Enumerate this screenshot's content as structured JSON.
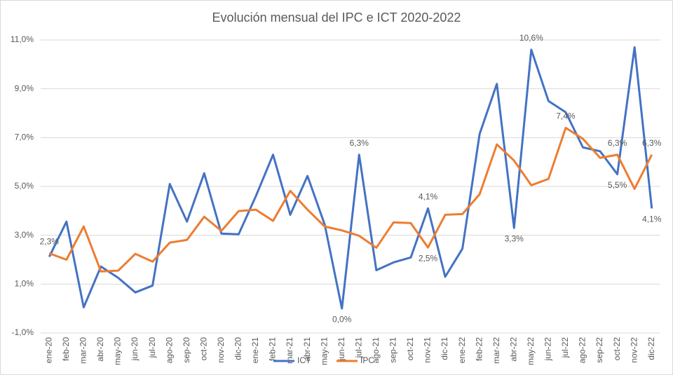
{
  "chart_data": {
    "type": "line",
    "title": "Evolución mensual del IPC e ICT 2020-2022",
    "categories": [
      "ene-20",
      "feb-20",
      "mar-20",
      "abr-20",
      "may-20",
      "jun-20",
      "jul-20",
      "ago-20",
      "sep-20",
      "oct-20",
      "nov-20",
      "dic-20",
      "ene-21",
      "feb-21",
      "mar-21",
      "abr-21",
      "may-21",
      "jun-21",
      "jul-21",
      "ago-21",
      "sep-21",
      "oct-21",
      "nov-21",
      "dic-21",
      "ene-22",
      "feb-22",
      "mar-22",
      "abr-22",
      "may-22",
      "jun-22",
      "jul-22",
      "ago-22",
      "sep-22",
      "oct-22",
      "nov-22",
      "dic-22"
    ],
    "series": [
      {
        "name": "ICT",
        "color": "#4472c4",
        "values": [
          2.12,
          3.56,
          0.05,
          1.72,
          1.26,
          0.66,
          0.94,
          5.1,
          3.56,
          5.54,
          3.07,
          3.04,
          4.6,
          6.3,
          3.84,
          5.43,
          3.44,
          0.0,
          6.3,
          1.57,
          1.89,
          2.09,
          4.1,
          1.3,
          2.45,
          7.15,
          9.2,
          3.3,
          10.6,
          8.5,
          8.04,
          6.6,
          6.44,
          5.5,
          10.7,
          4.1
        ],
        "value_labels": [
          null,
          null,
          null,
          null,
          null,
          null,
          null,
          null,
          null,
          null,
          null,
          null,
          null,
          null,
          null,
          null,
          null,
          "0,0%",
          "6,3%",
          null,
          null,
          null,
          "4,1%",
          null,
          null,
          null,
          null,
          "3,3%",
          "10,6%",
          null,
          null,
          null,
          null,
          "5,5%",
          null,
          "4,1%"
        ]
      },
      {
        "name": "IPC",
        "color": "#ed7d31",
        "values": [
          2.26,
          2.0,
          3.36,
          1.52,
          1.55,
          2.24,
          1.92,
          2.7,
          2.81,
          3.76,
          3.18,
          3.99,
          4.05,
          3.59,
          4.82,
          4.05,
          3.36,
          3.2,
          2.98,
          2.49,
          3.53,
          3.5,
          2.5,
          3.84,
          3.87,
          4.68,
          6.72,
          6.06,
          5.05,
          5.31,
          7.4,
          6.95,
          6.17,
          6.3,
          4.9,
          6.3
        ],
        "value_labels": [
          "2,3%",
          null,
          null,
          null,
          null,
          null,
          null,
          null,
          null,
          null,
          null,
          null,
          null,
          null,
          null,
          null,
          null,
          null,
          null,
          null,
          null,
          null,
          "2,5%",
          null,
          null,
          null,
          null,
          null,
          null,
          null,
          "7,4%",
          null,
          null,
          "6,3%",
          null,
          "6,3%"
        ]
      }
    ],
    "ylim": [
      -1,
      11
    ],
    "yticks": [
      {
        "value": -1,
        "label": "-1,0%"
      },
      {
        "value": 1,
        "label": "1,0%"
      },
      {
        "value": 3,
        "label": "3,0%"
      },
      {
        "value": 5,
        "label": "5,0%"
      },
      {
        "value": 7,
        "label": "7,0%"
      },
      {
        "value": 9,
        "label": "9,0%"
      },
      {
        "value": 11,
        "label": "11,0%"
      }
    ],
    "grid": true,
    "legend": "bottom"
  }
}
